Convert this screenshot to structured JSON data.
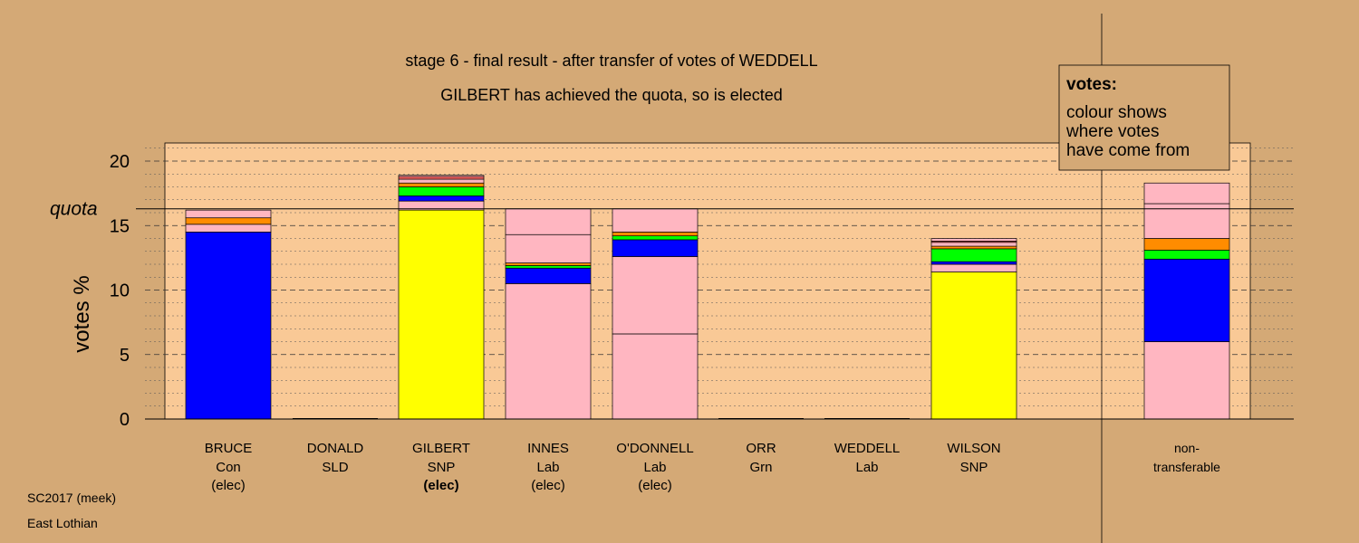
{
  "chart_data": {
    "type": "bar",
    "stacked": true,
    "title": "stage 6 - final result - after transfer of votes of WEDDELL",
    "subtitle": "GILBERT has achieved the quota, so is elected",
    "ylabel": "votes %",
    "ylim": [
      0,
      21.5
    ],
    "yticks": [
      0,
      5,
      10,
      15,
      20
    ],
    "quota": 16.3,
    "quota_label": "quota",
    "grid": true,
    "colors": {
      "Con": "#0000ff",
      "SNP": "#ffff00",
      "Lab": "#ffb6c1",
      "Grn": "#00ff00",
      "SLD": "#ff8c00",
      "Other": "#ff6666",
      "Background": "#d4a976",
      "Panel": "#f9c996"
    },
    "categories": [
      {
        "name": "BRUCE",
        "party": "Con",
        "status": "(elec)",
        "status_bold": false
      },
      {
        "name": "DONALD",
        "party": "SLD",
        "status": "",
        "status_bold": false
      },
      {
        "name": "GILBERT",
        "party": "SNP",
        "status": "(elec)",
        "status_bold": true
      },
      {
        "name": "INNES",
        "party": "Lab",
        "status": "(elec)",
        "status_bold": false
      },
      {
        "name": "O'DONNELL",
        "party": "Lab",
        "status": "(elec)",
        "status_bold": false
      },
      {
        "name": "ORR",
        "party": "Grn",
        "status": "",
        "status_bold": false
      },
      {
        "name": "WEDDELL",
        "party": "Lab",
        "status": "",
        "status_bold": false
      },
      {
        "name": "WILSON",
        "party": "SNP",
        "status": "",
        "status_bold": false
      },
      {
        "name": "non-",
        "party": "transferable",
        "status": "",
        "status_bold": false
      }
    ],
    "bars": [
      [
        {
          "from": "Con",
          "value": 14.5
        },
        {
          "from": "Lab",
          "value": 0.6
        },
        {
          "from": "SLD",
          "value": 0.5
        },
        {
          "from": "Lab",
          "value": 0.6
        }
      ],
      [],
      [
        {
          "from": "SNP",
          "value": 16.2
        },
        {
          "from": "Lab",
          "value": 0.7
        },
        {
          "from": "Con",
          "value": 0.4
        },
        {
          "from": "Grn",
          "value": 0.7
        },
        {
          "from": "SLD",
          "value": 0.3
        },
        {
          "from": "Lab",
          "value": 0.3
        },
        {
          "from": "Other",
          "value": 0.2
        },
        {
          "from": "Lab",
          "value": 0.1
        }
      ],
      [
        {
          "from": "Lab",
          "value": 10.5
        },
        {
          "from": "Con",
          "value": 1.2
        },
        {
          "from": "Grn",
          "value": 0.2
        },
        {
          "from": "SLD",
          "value": 0.2
        },
        {
          "from": "Lab",
          "value": 2.2
        },
        {
          "from": "Lab",
          "value": 2.0
        }
      ],
      [
        {
          "from": "Lab",
          "value": 6.6
        },
        {
          "from": "Lab",
          "value": 6.0
        },
        {
          "from": "Con",
          "value": 1.3
        },
        {
          "from": "Grn",
          "value": 0.3
        },
        {
          "from": "SLD",
          "value": 0.3
        },
        {
          "from": "Lab",
          "value": 1.8
        }
      ],
      [],
      [],
      [
        {
          "from": "SNP",
          "value": 11.4
        },
        {
          "from": "Lab",
          "value": 0.6
        },
        {
          "from": "Con",
          "value": 0.2
        },
        {
          "from": "Grn",
          "value": 1.0
        },
        {
          "from": "SLD",
          "value": 0.2
        },
        {
          "from": "Lab",
          "value": 0.3
        },
        {
          "from": "Other",
          "value": 0.1
        },
        {
          "from": "Lab",
          "value": 0.2
        }
      ],
      [
        {
          "from": "Lab",
          "value": 6.0
        },
        {
          "from": "Con",
          "value": 6.4
        },
        {
          "from": "Grn",
          "value": 0.7
        },
        {
          "from": "SLD",
          "value": 0.9
        },
        {
          "from": "Lab",
          "value": 2.7
        },
        {
          "from": "Lab",
          "value": 1.6
        }
      ]
    ],
    "legend": {
      "title": "votes:",
      "lines": [
        "colour shows",
        "where votes",
        "have come from"
      ],
      "position": "top-right"
    }
  },
  "footer": {
    "election": "SC2017 (meek)",
    "ward": "East Lothian"
  }
}
